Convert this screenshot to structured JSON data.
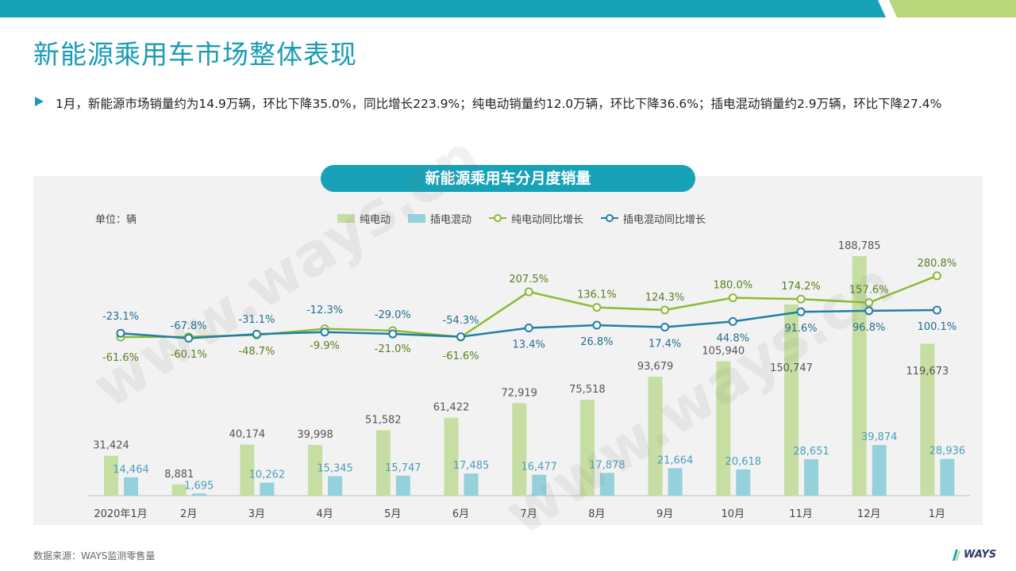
{
  "page": {
    "title": "新能源乘用车市场整体表现",
    "bullet": "1月，新能源市场销量约为14.9万辆，环比下降35.0%，同比增长223.9%；纯电动销量约12.0万辆，环比下降36.6%；插电混动销量约2.9万辆，环比下降27.4%",
    "source": "数据来源：WAYS监测零售量",
    "logo": "WAYS",
    "watermark": "www.ways.cn"
  },
  "colors": {
    "bev_bar": "#c7dea3",
    "phev_bar": "#94d1db",
    "bev_line": "#8cba34",
    "phev_line": "#1f7fa5",
    "accent": "#1a9bb6",
    "green_accent": "#b8d67a"
  },
  "chart_data": {
    "type": "bar",
    "title": "新能源乘用车分月度销量",
    "unit_label": "单位：辆",
    "categories": [
      "2020年1月",
      "2月",
      "3月",
      "4月",
      "5月",
      "6月",
      "7月",
      "8月",
      "9月",
      "10月",
      "11月",
      "12月",
      "1月"
    ],
    "series": [
      {
        "name": "纯电动",
        "kind": "bar",
        "values": [
          31424,
          8881,
          40174,
          39998,
          51582,
          61422,
          72919,
          75518,
          93679,
          105940,
          150747,
          188785,
          119673
        ]
      },
      {
        "name": "插电混动",
        "kind": "bar",
        "values": [
          14464,
          1695,
          10262,
          15345,
          15747,
          17485,
          16477,
          17878,
          21664,
          20618,
          28651,
          39874,
          28936
        ]
      },
      {
        "name": "纯电动同比增长",
        "kind": "line",
        "values": [
          -61.6,
          -60.1,
          -48.7,
          -9.9,
          -21.0,
          -61.6,
          207.5,
          136.1,
          124.3,
          180.0,
          174.2,
          157.6,
          280.8
        ]
      },
      {
        "name": "插电混动同比增长",
        "kind": "line",
        "values": [
          -23.1,
          -67.8,
          -31.1,
          -12.3,
          -29.0,
          -54.3,
          13.4,
          26.8,
          17.4,
          44.8,
          91.6,
          96.8,
          100.1
        ]
      }
    ],
    "bar_labels": {
      "bev": [
        "31,424",
        "8,881",
        "40,174",
        "39,998",
        "51,582",
        "61,422",
        "72,919",
        "75,518",
        "93,679",
        "105,940",
        "150,747",
        "188,785",
        "119,673"
      ],
      "phev": [
        "14,464",
        "1,695",
        "10,262",
        "15,345",
        "15,747",
        "17,485",
        "16,477",
        "17,878",
        "21,664",
        "20,618",
        "28,651",
        "39,874",
        "28,936"
      ]
    },
    "line_labels": {
      "bev": [
        "-61.6%",
        "-60.1%",
        "-48.7%",
        "-9.9%",
        "-21.0%",
        "-61.6%",
        "207.5%",
        "136.1%",
        "124.3%",
        "180.0%",
        "174.2%",
        "157.6%",
        "280.8%"
      ],
      "phev": [
        "-23.1%",
        "-67.8%",
        "-31.1%",
        "-12.3%",
        "-29.0%",
        "-54.3%",
        "13.4%",
        "26.8%",
        "17.4%",
        "44.8%",
        "91.6%",
        "96.8%",
        "100.1%"
      ]
    },
    "legend_placement": "top",
    "grid": false
  }
}
